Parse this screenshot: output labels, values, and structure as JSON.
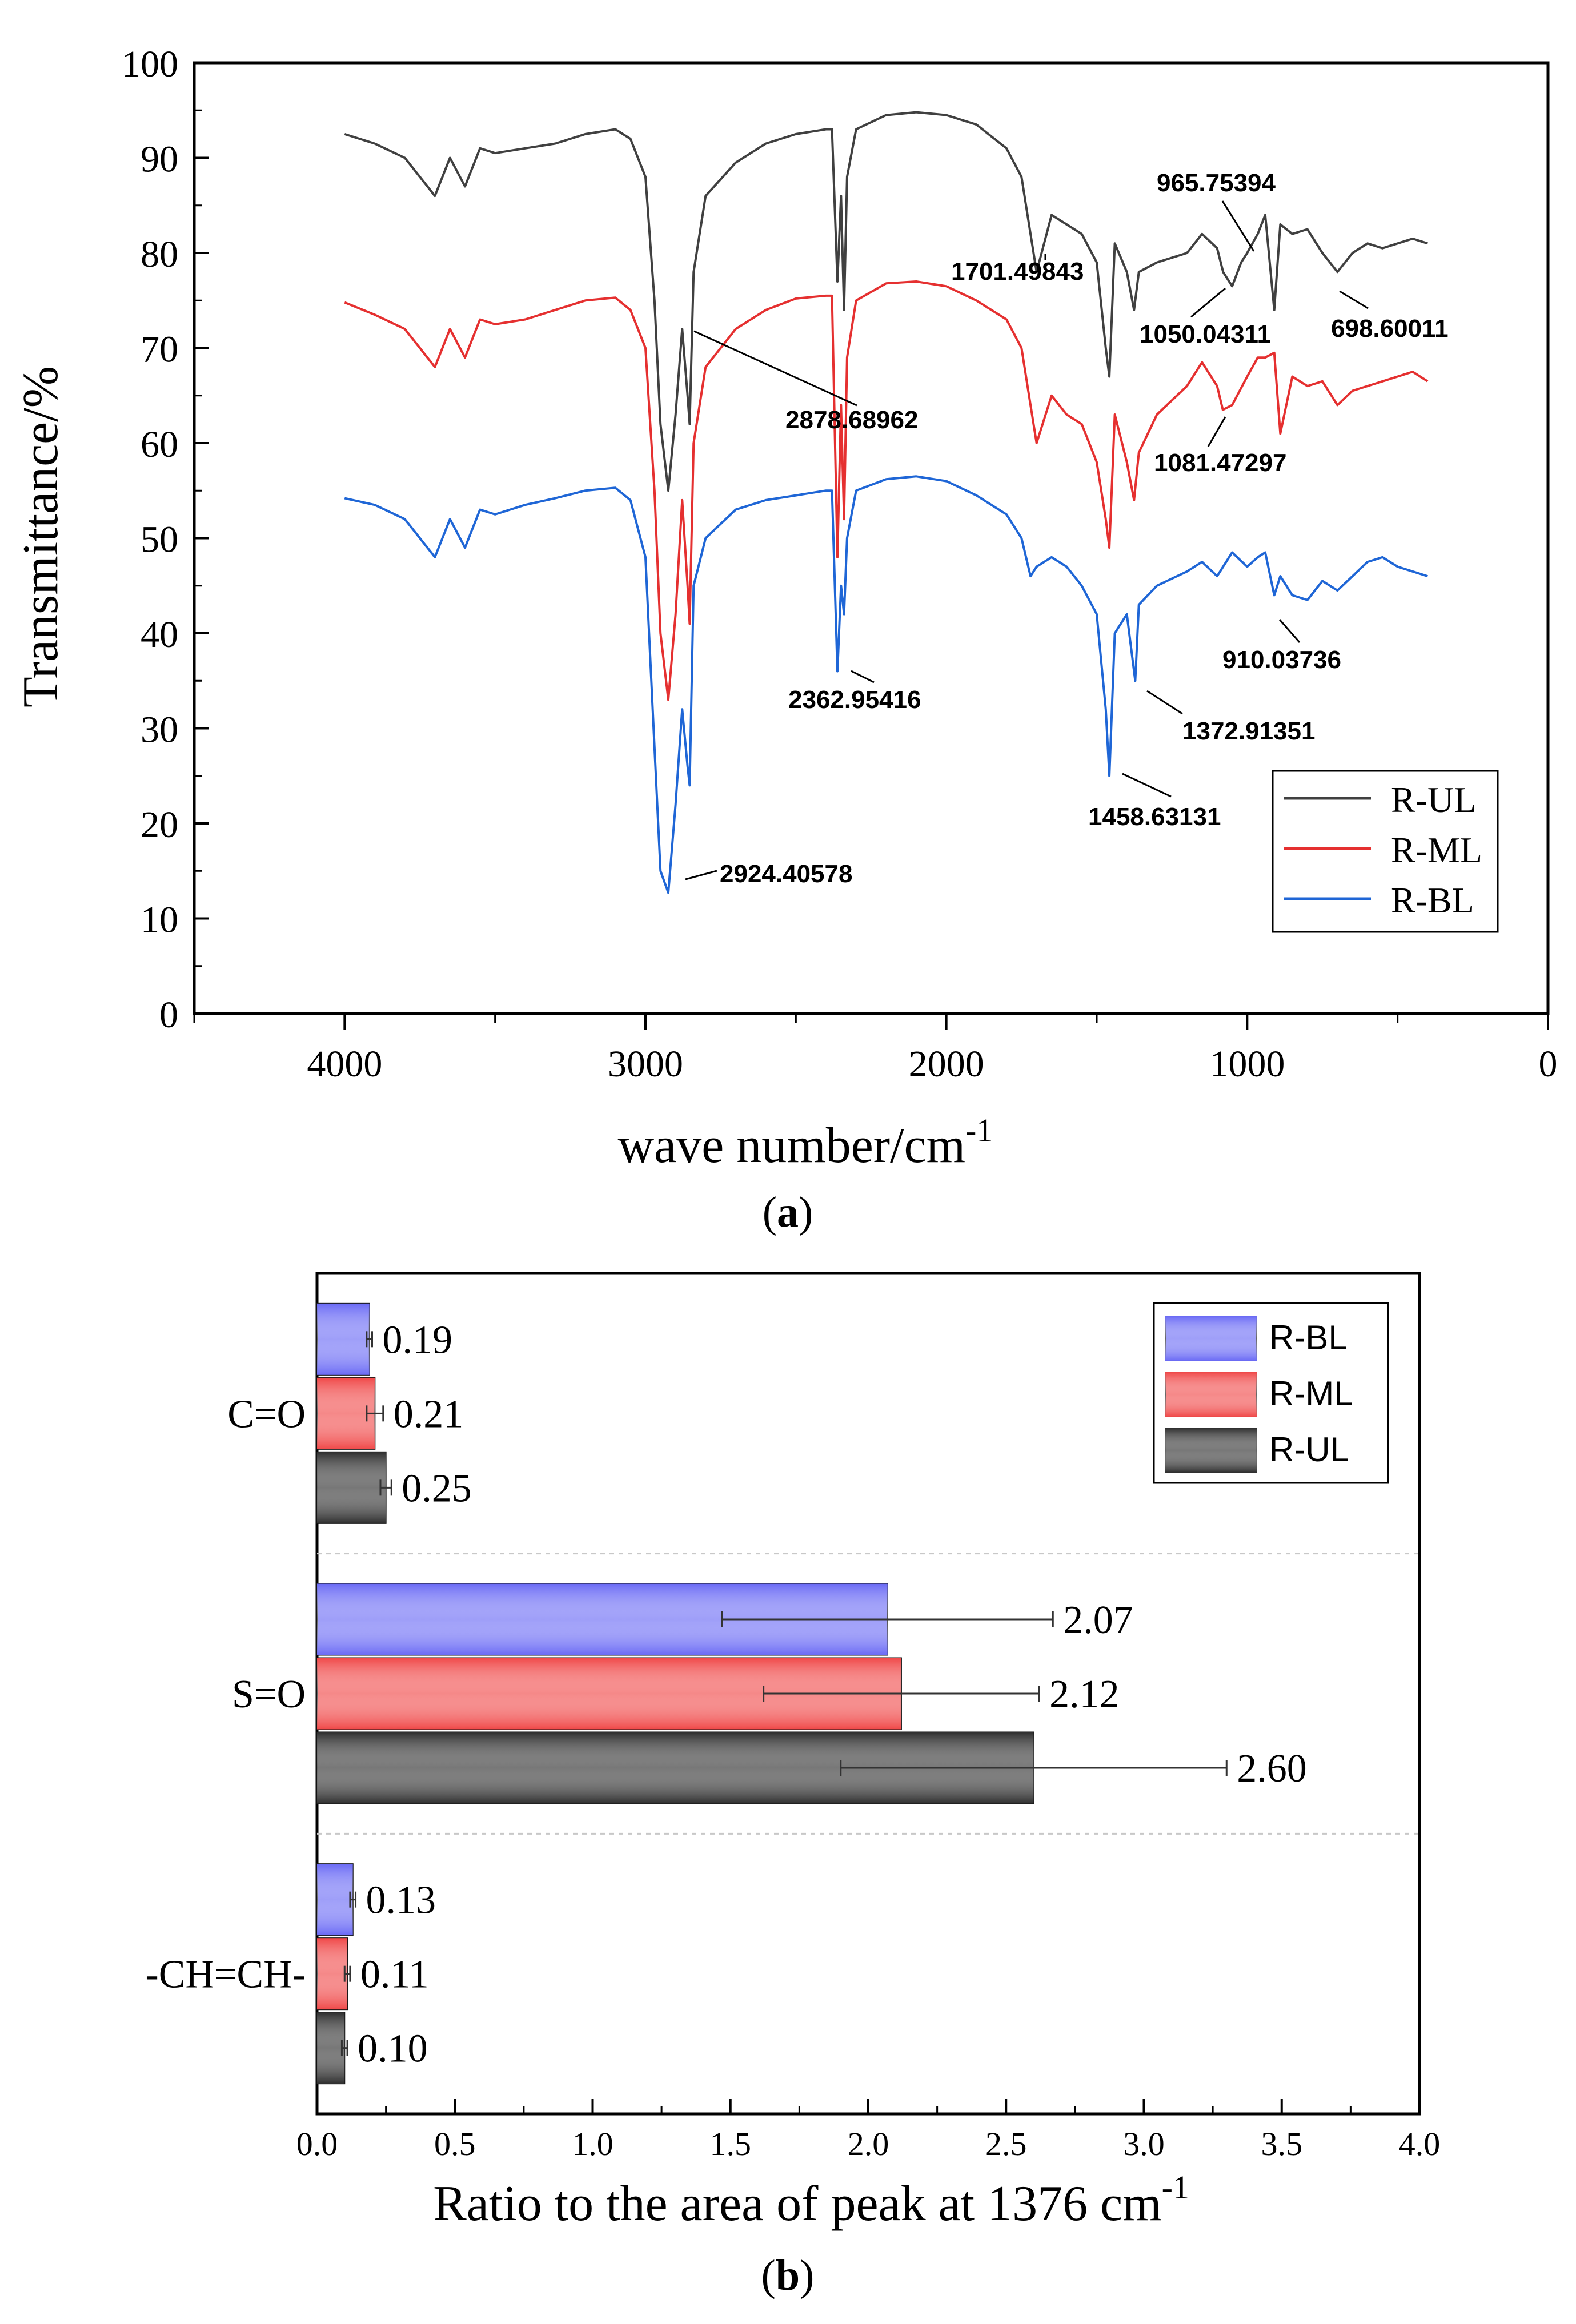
{
  "chart_data": [
    {
      "type": "line",
      "panel_label_prefix": "(",
      "panel_label_letter": "a",
      "panel_label_suffix": ")",
      "xlabel_main": "wave number/cm",
      "xlabel_sup": "-1",
      "ylabel": "Transmittance/%",
      "xlim": [
        4500,
        0
      ],
      "ylim": [
        0,
        100
      ],
      "x_ticks": [
        4000,
        3000,
        2000,
        1000,
        0
      ],
      "y_ticks": [
        0,
        10,
        20,
        30,
        40,
        50,
        60,
        70,
        80,
        90,
        100
      ],
      "legend_position": "bottom-right",
      "colors": {
        "R-UL": "#404040",
        "R-ML": "#e53030",
        "R-BL": "#1f66d6"
      },
      "series": [
        {
          "name": "R-UL",
          "x": [
            4000,
            3900,
            3800,
            3750,
            3700,
            3650,
            3600,
            3550,
            3500,
            3400,
            3300,
            3200,
            3100,
            3050,
            3000,
            2970,
            2950,
            2924,
            2900,
            2878,
            2860,
            2853,
            2840,
            2800,
            2700,
            2600,
            2500,
            2400,
            2380,
            2362,
            2350,
            2340,
            2330,
            2300,
            2200,
            2100,
            2000,
            1900,
            1800,
            1750,
            1720,
            1700,
            1650,
            1600,
            1550,
            1500,
            1470,
            1458,
            1440,
            1400,
            1376,
            1360,
            1300,
            1200,
            1150,
            1100,
            1080,
            1050,
            1020,
            1000,
            965,
            940,
            910,
            890,
            850,
            800,
            750,
            700,
            650,
            600,
            550,
            500,
            450,
            400
          ],
          "y": [
            92.5,
            91.5,
            90,
            88,
            86,
            90,
            87,
            91,
            90.5,
            91,
            91.5,
            92.5,
            93,
            92,
            88,
            75,
            62,
            55,
            63,
            72,
            65,
            62,
            78,
            86,
            89.5,
            91.5,
            92.5,
            93,
            93,
            77,
            86,
            74,
            88,
            93,
            94.5,
            94.8,
            94.5,
            93.5,
            91,
            88,
            82,
            78,
            84,
            83,
            82,
            79,
            70,
            67,
            81,
            78,
            74,
            78,
            79,
            80,
            82,
            80.5,
            78,
            76.5,
            79,
            80,
            82,
            84,
            74,
            83,
            82,
            82.5,
            80,
            78,
            80,
            81,
            80.5,
            81,
            81.5,
            81
          ]
        },
        {
          "name": "R-ML",
          "x": [
            4000,
            3900,
            3800,
            3750,
            3700,
            3650,
            3600,
            3550,
            3500,
            3400,
            3300,
            3200,
            3100,
            3050,
            3000,
            2970,
            2950,
            2924,
            2900,
            2878,
            2860,
            2853,
            2840,
            2800,
            2700,
            2600,
            2500,
            2400,
            2380,
            2362,
            2350,
            2340,
            2330,
            2300,
            2200,
            2100,
            2000,
            1900,
            1800,
            1750,
            1720,
            1700,
            1650,
            1600,
            1550,
            1500,
            1470,
            1458,
            1440,
            1400,
            1376,
            1360,
            1300,
            1200,
            1150,
            1100,
            1081,
            1050,
            1000,
            965,
            940,
            910,
            890,
            850,
            800,
            750,
            700,
            650,
            600,
            550,
            500,
            450,
            400
          ],
          "y": [
            74.8,
            73.5,
            72,
            70,
            68,
            72,
            69,
            73,
            72.5,
            73,
            74,
            75,
            75.3,
            74,
            70,
            55,
            40,
            33,
            42,
            54,
            45,
            41,
            60,
            68,
            72,
            74,
            75.2,
            75.5,
            75.5,
            48,
            64,
            52,
            69,
            75,
            76.8,
            77,
            76.5,
            75,
            73,
            70,
            64,
            60,
            65,
            63,
            62,
            58,
            52,
            49,
            63,
            58,
            54,
            59,
            63,
            66,
            68.5,
            66,
            63.5,
            64,
            67,
            69,
            69,
            69.5,
            61,
            67,
            66,
            66.5,
            64,
            65.5,
            66,
            66.5,
            67,
            67.5,
            66.5
          ]
        },
        {
          "name": "R-BL",
          "x": [
            4000,
            3900,
            3800,
            3750,
            3700,
            3650,
            3600,
            3550,
            3500,
            3400,
            3300,
            3200,
            3100,
            3050,
            3000,
            2970,
            2950,
            2924,
            2900,
            2878,
            2860,
            2853,
            2840,
            2800,
            2700,
            2600,
            2500,
            2400,
            2380,
            2362,
            2350,
            2340,
            2330,
            2300,
            2200,
            2100,
            2000,
            1900,
            1800,
            1750,
            1720,
            1700,
            1650,
            1600,
            1550,
            1500,
            1470,
            1458,
            1440,
            1400,
            1372,
            1360,
            1300,
            1200,
            1150,
            1100,
            1050,
            1000,
            965,
            940,
            910,
            890,
            850,
            800,
            750,
            700,
            650,
            600,
            550,
            500,
            450,
            400
          ],
          "y": [
            54.2,
            53.5,
            52,
            50,
            48,
            52,
            49,
            53,
            52.5,
            53.5,
            54.2,
            55,
            55.3,
            54,
            48,
            28,
            15,
            12.7,
            22,
            32,
            26,
            24,
            45,
            50,
            53,
            54,
            54.5,
            55,
            55,
            36,
            45,
            42,
            50,
            55,
            56.2,
            56.5,
            56,
            54.5,
            52.5,
            50,
            46,
            47,
            48,
            47,
            45,
            42,
            32,
            25,
            40,
            42,
            35,
            43,
            45,
            46.5,
            47.5,
            46,
            48.5,
            47,
            48,
            48.5,
            44,
            46,
            44,
            43.5,
            45.5,
            44.5,
            46,
            47.5,
            48,
            47,
            46.5,
            46
          ]
        }
      ],
      "annotations": [
        {
          "text": "965.75394",
          "x": 965.75394,
          "series": "R-UL"
        },
        {
          "text": "1701.49843",
          "x": 1701.49843,
          "series": "R-UL"
        },
        {
          "text": "1050.04311",
          "x": 1050.04311,
          "series": "R-UL"
        },
        {
          "text": "698.60011",
          "x": 698.60011,
          "series": "R-UL"
        },
        {
          "text": "2878.68962",
          "x": 2878.68962,
          "series": "R-UL"
        },
        {
          "text": "1081.47297",
          "x": 1081.47297,
          "series": "R-ML"
        },
        {
          "text": "910.03736",
          "x": 910.03736,
          "series": "R-BL"
        },
        {
          "text": "2362.95416",
          "x": 2362.95416,
          "series": "R-BL"
        },
        {
          "text": "1372.91351",
          "x": 1372.91351,
          "series": "R-BL"
        },
        {
          "text": "1458.63131",
          "x": 1458.63131,
          "series": "R-BL"
        },
        {
          "text": "2924.40578",
          "x": 2924.40578,
          "series": "R-BL"
        }
      ]
    },
    {
      "type": "bar",
      "orientation": "horizontal",
      "panel_label_prefix": "(",
      "panel_label_letter": "b",
      "panel_label_suffix": ")",
      "xlabel_main": "Ratio to the area of peak at 1376 cm",
      "xlabel_sup": "-1",
      "ylabel": "",
      "xlim": [
        0.0,
        4.0
      ],
      "x_ticks": [
        0.0,
        0.5,
        1.0,
        1.5,
        2.0,
        2.5,
        3.0,
        3.5,
        4.0
      ],
      "categories": [
        "C=O",
        "S=O",
        "-CH=CH-"
      ],
      "legend_position": "top-right",
      "colors": {
        "R-BL": "#6a6af5",
        "R-ML": "#f04848",
        "R-UL": "#2e2e2e"
      },
      "series": [
        {
          "name": "R-BL",
          "values": [
            0.19,
            2.07,
            0.13
          ],
          "errors": [
            0.01,
            0.6,
            0.01
          ],
          "value_labels": [
            "0.19",
            "2.07",
            "0.13"
          ]
        },
        {
          "name": "R-ML",
          "values": [
            0.21,
            2.12,
            0.11
          ],
          "errors": [
            0.03,
            0.5,
            0.01
          ],
          "value_labels": [
            "0.21",
            "2.12",
            "0.11"
          ]
        },
        {
          "name": "R-UL",
          "values": [
            0.25,
            2.6,
            0.1
          ],
          "errors": [
            0.02,
            0.7,
            0.01
          ],
          "value_labels": [
            "0.25",
            "2.60",
            "0.10"
          ]
        }
      ]
    }
  ]
}
